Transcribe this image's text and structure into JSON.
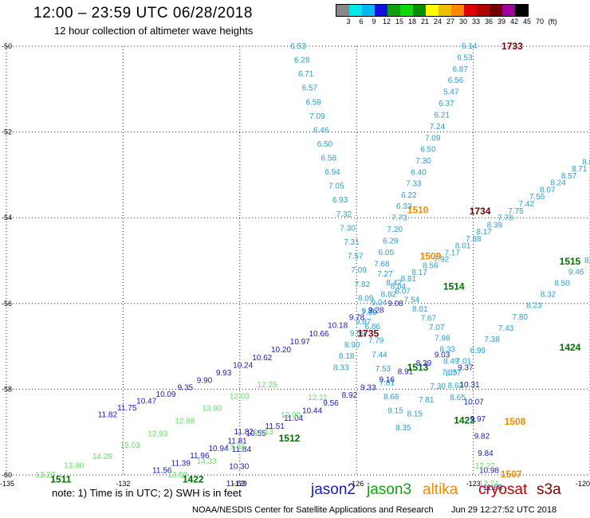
{
  "header": {
    "title": "12:00 – 23:59 UTC 06/28/2018",
    "subtitle": "12 hour collection of altimeter wave heights"
  },
  "color_scale": {
    "colors": [
      "#888888",
      "#00e8e8",
      "#00b8f0",
      "#1010e0",
      "#10a010",
      "#10d810",
      "#009000",
      "#ffff00",
      "#f0c000",
      "#ff8800",
      "#e00000",
      "#b00000",
      "#700000",
      "#a000a0",
      "#000000"
    ],
    "labels": [
      "3",
      "6",
      "9",
      "12",
      "15",
      "18",
      "21",
      "24",
      "27",
      "30",
      "33",
      "36",
      "39",
      "42",
      "45",
      "70"
    ],
    "unit": "(ft)"
  },
  "map": {
    "lat_labels": [
      "-50",
      "-52",
      "-54",
      "-56",
      "-58",
      "-60"
    ],
    "lon_labels": [
      "-135",
      "-132",
      "-129",
      "-126",
      "-123",
      "-120"
    ],
    "tracks": [
      {
        "color": "#2aa0d0",
        "lonlat": [
          [
            -127.5,
            -50.0
          ],
          [
            -126.6,
            -53.0
          ],
          [
            -126.0,
            -55.0
          ],
          [
            -125.6,
            -56.5
          ],
          [
            -125.3,
            -57.6
          ],
          [
            -125.0,
            -58.5
          ]
        ],
        "values": [
          "6.53",
          "6.28",
          "6.71",
          "6.57",
          "6.59",
          "7.09",
          "6.46",
          "6.50",
          "6.58",
          "6.94",
          "7.05",
          "6.93",
          "7.32",
          "7.30",
          "7.31",
          "7.57",
          "7.09",
          "7.82",
          "8.09",
          "7.60",
          "6.86",
          "7.79",
          "7.44",
          "7.53",
          "7.81",
          "8.68",
          "9.15"
        ],
        "time": "1510",
        "time_color": "#f08c00"
      },
      {
        "color": "#2aa0d0",
        "lonlat": [
          [
            -123.1,
            -50.0
          ],
          [
            -124.2,
            -52.5
          ],
          [
            -124.9,
            -54.0
          ],
          [
            -125.4,
            -55.2
          ],
          [
            -124.6,
            -55.9
          ],
          [
            -123.9,
            -56.6
          ],
          [
            -123.6,
            -57.2
          ],
          [
            -123.4,
            -58.2
          ]
        ],
        "values": [
          "6.14",
          "6.53",
          "6.87",
          "6.56",
          "5.47",
          "6.37",
          "6.21",
          "7.24",
          "7.09",
          "6.50",
          "7.30",
          "6.40",
          "7.33",
          "6.22",
          "6.33",
          "7.73",
          "7.20",
          "6.29",
          "6.05",
          "7.68",
          "7.27",
          "8.42",
          "8.07",
          "7.54",
          "8.01",
          "7.67",
          "7.07",
          "7.98",
          "8.33",
          "8.49",
          "8.77",
          "8.63",
          "8.65"
        ],
        "time": "1734",
        "time_color": "#7a0000"
      },
      {
        "color": "#2aa0d0",
        "lonlat": [
          [
            -126.4,
            -57.5
          ],
          [
            -125.7,
            -56.2
          ],
          [
            -124.8,
            -55.5
          ],
          [
            -123.5,
            -54.8
          ],
          [
            -122.0,
            -53.9
          ],
          [
            -120.5,
            -53.0
          ],
          [
            -120.0,
            -52.7
          ]
        ],
        "values": [
          "8.33",
          "8.18",
          "8.90",
          "9.59",
          "9.87",
          "9.76",
          "9.04",
          "8.82",
          "8.04",
          "8.81",
          "8.17",
          "8.56",
          "7.92",
          "7.17",
          "8.01",
          "7.88",
          "8.17",
          "8.39",
          "7.78",
          "7.75",
          "7.42",
          "7.56",
          "8.07",
          "8.24",
          "8.57",
          "8.71",
          "8.04"
        ],
        "time": "1515",
        "time_color": "#007000"
      },
      {
        "color": "#2aa0d0",
        "lonlat": [
          [
            -124.8,
            -58.9
          ],
          [
            -123.6,
            -57.6
          ],
          [
            -122.6,
            -56.9
          ],
          [
            -121.5,
            -56.1
          ],
          [
            -120.4,
            -55.3
          ],
          [
            -120.0,
            -55.0
          ]
        ],
        "values": [
          "8.35",
          "8.15",
          "7.81",
          "7.30",
          "7.35",
          "7.01",
          "6.99",
          "7.38",
          "7.43",
          "7.80",
          "8.23",
          "8.32",
          "8.50",
          "9.46",
          "8.6"
        ],
        "time": "1424",
        "time_color": "#007000"
      },
      {
        "color": "#1a1ab8",
        "lonlat": [
          [
            -132.4,
            -58.6
          ],
          [
            -130.5,
            -58.0
          ],
          [
            -128.5,
            -57.3
          ],
          [
            -127.2,
            -56.8
          ],
          [
            -126.2,
            -56.4
          ],
          [
            -125.0,
            -56.0
          ]
        ],
        "values": [
          "11.82",
          "11.75",
          "10.47",
          "10.09",
          "9.35",
          "9.90",
          "9.93",
          "10.24",
          "10.62",
          "10.20",
          "10.97",
          "10.66",
          "10.18",
          "9.78",
          "9.28",
          "9.08"
        ],
        "time": "1513",
        "time_color": "#007000"
      },
      {
        "color": "#1a1ab8",
        "lonlat": [
          [
            -131.0,
            -59.9
          ],
          [
            -129.6,
            -59.4
          ],
          [
            -128.2,
            -58.9
          ],
          [
            -126.6,
            -58.3
          ],
          [
            -125.0,
            -57.7
          ],
          [
            -123.8,
            -57.2
          ]
        ],
        "values": [
          "11.56",
          "11.39",
          "11.96",
          "10.94",
          "11.81",
          "10.55",
          "11.51",
          "11.04",
          "10.44",
          "9.56",
          "8.92",
          "9.33",
          "9.16",
          "8.91",
          "8.39",
          "9.03"
        ],
        "time": "1423",
        "time_color": "#007000"
      },
      {
        "color": "#1a1ab8",
        "lonlat": [
          [
            -123.2,
            -57.5
          ],
          [
            -122.8,
            -59.0
          ],
          [
            -122.5,
            -60.3
          ]
        ],
        "values": [
          "9.37",
          "10.31",
          "10.07",
          "9.97",
          "9.82",
          "9.84",
          "10.98",
          "11.68"
        ],
        "time": "1508",
        "time_color": "#f08c00"
      },
      {
        "color": "#1a1ab8",
        "lonlat": [
          [
            -128.9,
            -59.0
          ],
          [
            -129.0,
            -59.7
          ],
          [
            -129.1,
            -60.2
          ]
        ],
        "values": [
          "11.82",
          "11.84",
          "10.30",
          "11.62"
        ],
        "time": "",
        "time_color": "#1a1ab8"
      },
      {
        "color": "#66e066",
        "lonlat": [
          [
            -134.0,
            -60.0
          ],
          [
            -132.6,
            -59.6
          ],
          [
            -131.0,
            -59.0
          ],
          [
            -129.6,
            -58.4
          ],
          [
            -128.3,
            -57.9
          ]
        ],
        "values": [
          "13.27",
          "13.80",
          "14.29",
          "15.03",
          "12.93",
          "12.98",
          "13.90",
          "12.03",
          "12.25"
        ],
        "time": "1512",
        "time_color": "#007000"
      },
      {
        "color": "#66e066",
        "lonlat": [
          [
            -130.6,
            -60.0
          ],
          [
            -129.4,
            -59.5
          ],
          [
            -128.2,
            -58.9
          ],
          [
            -127.0,
            -58.2
          ]
        ],
        "values": [
          "13.50",
          "14.33",
          "13.86",
          "14.13",
          "12.90",
          "12.11"
        ],
        "time": "",
        "time_color": "#66e066"
      },
      {
        "color": "#66e066",
        "lonlat": [
          [
            -122.7,
            -59.8
          ],
          [
            -122.6,
            -60.2
          ]
        ],
        "values": [
          "12.27",
          "12.24"
        ],
        "time": "1507",
        "time_color": "#f08c00"
      }
    ],
    "extra_times": [
      {
        "text": "1733",
        "color": "#7a0000",
        "lon": -122.0,
        "lat": -50.0
      },
      {
        "text": "1735",
        "color": "#7a0000",
        "lon": -125.7,
        "lat": -56.7
      },
      {
        "text": "1509",
        "color": "#f08c00",
        "lon": -124.1,
        "lat": -54.9
      },
      {
        "text": "1514",
        "color": "#007000",
        "lon": -123.5,
        "lat": -55.6
      },
      {
        "text": "1511",
        "color": "#007000",
        "lon": -133.6,
        "lat": -60.1
      },
      {
        "text": "1422",
        "color": "#007000",
        "lon": -130.2,
        "lat": -60.1
      }
    ]
  },
  "footer": {
    "note": "note: 1) Time is in UTC; 2) SWH is in feet",
    "satellites": [
      {
        "name": "jason2",
        "color": "#1a1ab8"
      },
      {
        "name": "jason3",
        "color": "#10a010"
      },
      {
        "name": "altika",
        "color": "#f08c00"
      },
      {
        "name": "cryosat",
        "color": "#c00000"
      },
      {
        "name": "s3a",
        "color": "#7a0000"
      }
    ],
    "credit": "NOAA/NESDIS Center for Satellite Applications and Research",
    "timestamp": "Jun 29 12:27:52 UTC 2018"
  }
}
